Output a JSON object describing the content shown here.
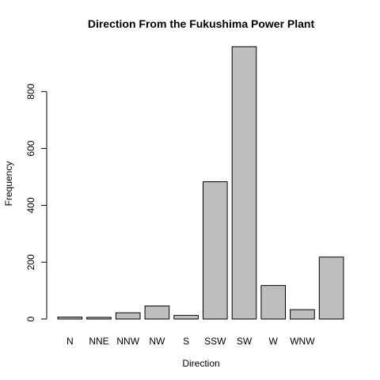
{
  "chart_data": {
    "type": "bar",
    "title": "Direction From the Fukushima Power Plant",
    "xlabel": "Direction",
    "ylabel": "Frequency",
    "categories": [
      "N",
      "NNE",
      "NNW",
      "NW",
      "S",
      "SSW",
      "SW",
      "W",
      "WNW",
      ""
    ],
    "values": [
      7,
      6,
      22,
      46,
      13,
      483,
      958,
      118,
      33,
      218
    ],
    "ylim": [
      0,
      958
    ],
    "yticks": [
      0,
      200,
      400,
      600,
      800
    ],
    "ytick_labels": [
      "0",
      "200",
      "400",
      "600",
      "800"
    ],
    "grid": false,
    "legend": "none",
    "bar_color": "#bebebe",
    "bar_edge_color": "#000000"
  }
}
